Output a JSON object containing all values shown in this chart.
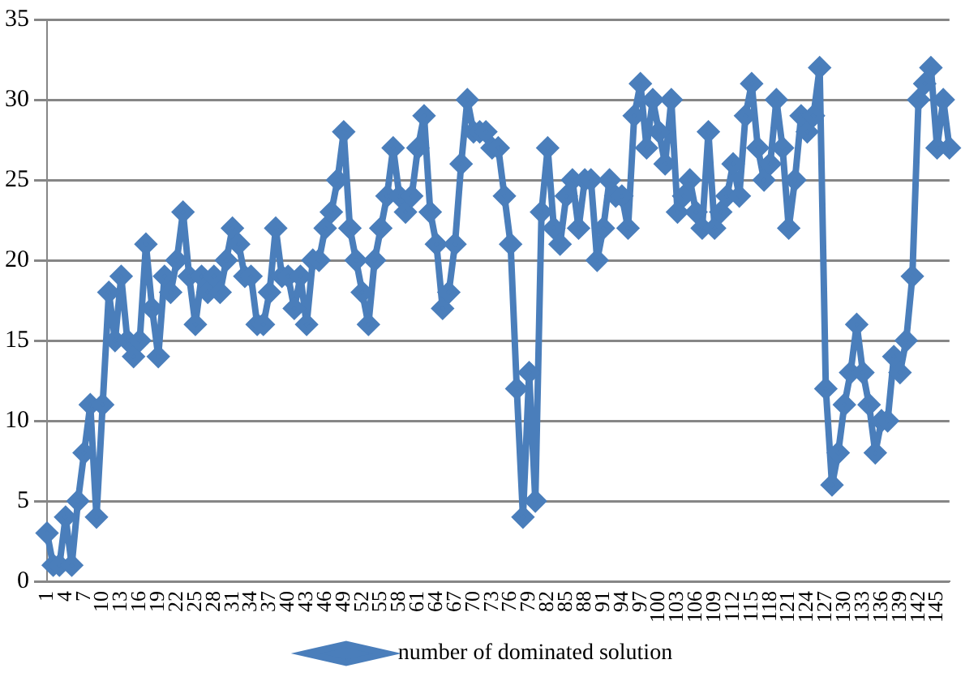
{
  "chart_data": {
    "type": "line",
    "categories": [
      "1",
      null,
      null,
      "4",
      null,
      null,
      "7",
      null,
      null,
      "10",
      null,
      null,
      "13",
      null,
      null,
      "16",
      null,
      null,
      "19",
      null,
      null,
      "22",
      null,
      null,
      "25",
      null,
      null,
      "28",
      null,
      null,
      "31",
      null,
      null,
      "34",
      null,
      null,
      "37",
      null,
      null,
      "40",
      null,
      null,
      "43",
      null,
      null,
      "46",
      null,
      null,
      "49",
      null,
      null,
      "52",
      null,
      null,
      "55",
      null,
      null,
      "58",
      null,
      null,
      "61",
      null,
      null,
      "64",
      null,
      null,
      "67",
      null,
      null,
      "70",
      null,
      null,
      "73",
      null,
      null,
      "76",
      null,
      null,
      "79",
      null,
      null,
      "82",
      null,
      null,
      "85",
      null,
      null,
      "88",
      null,
      null,
      "91",
      null,
      null,
      "94",
      null,
      null,
      "97",
      null,
      null,
      "100",
      null,
      null,
      "103",
      null,
      null,
      "106",
      null,
      null,
      "109",
      null,
      null,
      "112",
      null,
      null,
      "115",
      null,
      null,
      "118",
      null,
      null,
      "121",
      null,
      null,
      "124",
      null,
      null,
      "127",
      null,
      null,
      "130",
      null,
      null,
      "133",
      null,
      null,
      "136",
      null,
      null,
      "139",
      null,
      null,
      "142",
      null,
      null,
      "145",
      null,
      null
    ],
    "series": [
      {
        "name": "number of dominated solution",
        "color": "#4a7ebb",
        "values": [
          3,
          1,
          1,
          4,
          1,
          5,
          8,
          11,
          4,
          11,
          18,
          15,
          19,
          15,
          14,
          15,
          21,
          17,
          14,
          19,
          18,
          20,
          23,
          19,
          16,
          19,
          18,
          19,
          18,
          20,
          22,
          21,
          19,
          19,
          16,
          16,
          18,
          22,
          19,
          19,
          17,
          19,
          16,
          20,
          20,
          22,
          23,
          25,
          28,
          22,
          20,
          18,
          16,
          20,
          22,
          24,
          27,
          24,
          23,
          24,
          27,
          29,
          23,
          21,
          17,
          18,
          21,
          26,
          30,
          28,
          28,
          28,
          27,
          27,
          24,
          21,
          12,
          4,
          13,
          5,
          23,
          27,
          22,
          21,
          24,
          25,
          22,
          25,
          25,
          20,
          22,
          25,
          24,
          24,
          22,
          29,
          31,
          27,
          30,
          28,
          26,
          30,
          23,
          24,
          25,
          23,
          22,
          28,
          22,
          23,
          24,
          26,
          24,
          29,
          31,
          27,
          25,
          26,
          30,
          27,
          22,
          25,
          29,
          28,
          29,
          32,
          12,
          6,
          8,
          11,
          13,
          16,
          13,
          11,
          8,
          10,
          10,
          14,
          13,
          15,
          19,
          30,
          31,
          32,
          27,
          30,
          27
        ]
      }
    ],
    "ylim": [
      0,
      35
    ],
    "yticks": [
      0,
      5,
      10,
      15,
      20,
      25,
      30,
      35
    ],
    "grid": "y",
    "legend": "bottom",
    "marker": "diamond",
    "line_style": "solid"
  }
}
